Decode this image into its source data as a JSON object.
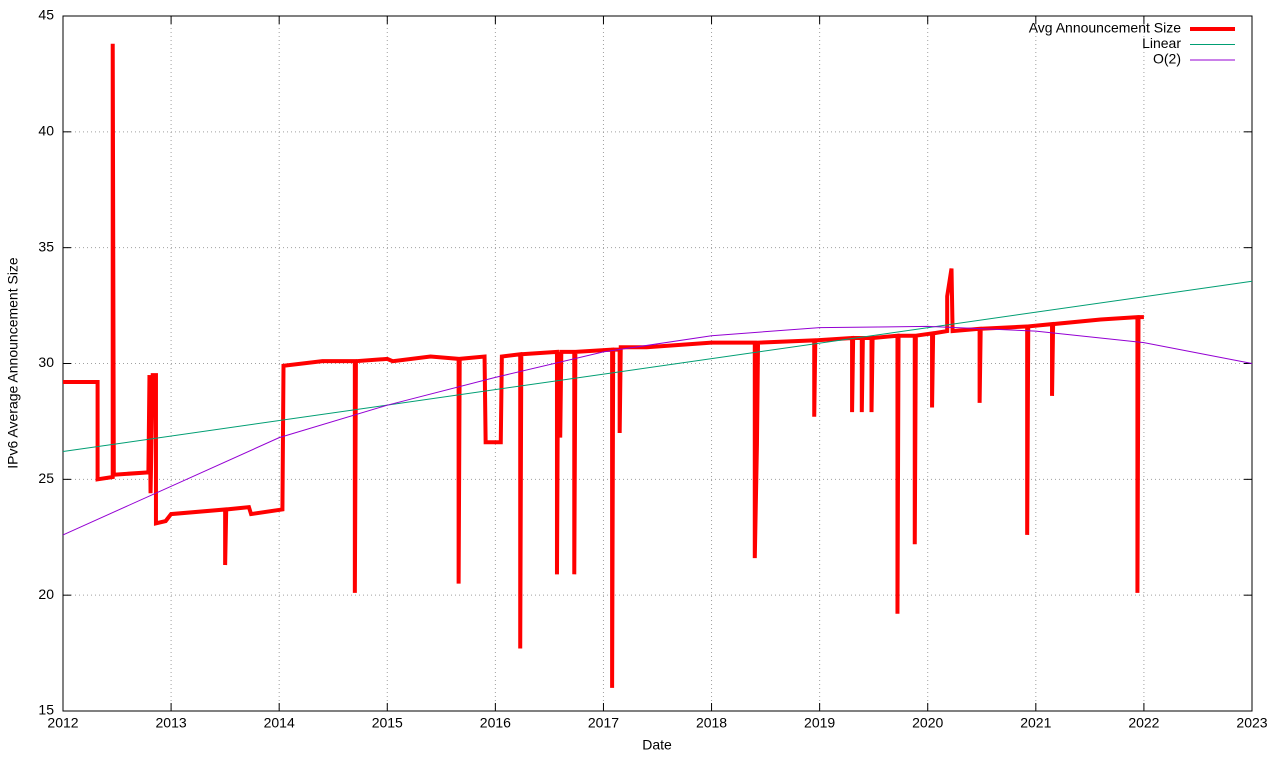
{
  "chart_data": {
    "type": "line",
    "xlabel": "Date",
    "ylabel": "IPv6 Average Announcement Size",
    "xlim": [
      2012,
      2023
    ],
    "ylim": [
      15,
      45
    ],
    "xticks": [
      2012,
      2013,
      2014,
      2015,
      2016,
      2017,
      2018,
      2019,
      2020,
      2021,
      2022,
      2023
    ],
    "yticks": [
      15,
      20,
      25,
      30,
      35,
      40,
      45
    ],
    "grid": true,
    "legend": "top-right",
    "series": [
      {
        "name": "Avg Announcement Size",
        "color": "#ff0000",
        "x": [
          2012.0,
          2012.32,
          2012.32,
          2012.46,
          2012.46,
          2012.47,
          2012.79,
          2012.8,
          2012.81,
          2012.83,
          2012.86,
          2012.86,
          2012.95,
          2013.0,
          2013.5,
          2013.5,
          2013.51,
          2013.72,
          2013.74,
          2014.03,
          2014.04,
          2014.4,
          2014.7,
          2014.7,
          2014.71,
          2015.0,
          2015.05,
          2015.4,
          2015.66,
          2015.66,
          2015.67,
          2015.9,
          2015.91,
          2016.05,
          2016.06,
          2016.23,
          2016.23,
          2016.24,
          2016.57,
          2016.57,
          2016.58,
          2016.6,
          2016.61,
          2016.73,
          2016.73,
          2016.74,
          2017.08,
          2017.08,
          2017.09,
          2017.15,
          2017.15,
          2017.16,
          2017.4,
          2018.0,
          2018.4,
          2018.4,
          2018.42,
          2018.43,
          2018.95,
          2018.95,
          2018.96,
          2019.3,
          2019.3,
          2019.31,
          2019.39,
          2019.39,
          2019.4,
          2019.48,
          2019.48,
          2019.49,
          2019.72,
          2019.72,
          2019.73,
          2019.88,
          2019.88,
          2019.89,
          2020.04,
          2020.04,
          2020.05,
          2020.18,
          2020.18,
          2020.22,
          2020.23,
          2020.48,
          2020.48,
          2020.49,
          2020.92,
          2020.92,
          2020.93,
          2021.15,
          2021.15,
          2021.16,
          2021.6,
          2021.94,
          2021.94,
          2021.95,
          2022.0
        ],
        "values": [
          29.2,
          29.2,
          25.0,
          25.1,
          43.8,
          25.2,
          25.3,
          29.5,
          24.4,
          29.5,
          29.5,
          23.1,
          23.2,
          23.5,
          23.7,
          21.3,
          23.7,
          23.8,
          23.5,
          23.7,
          29.9,
          30.1,
          30.1,
          20.1,
          30.1,
          30.2,
          30.1,
          30.3,
          30.2,
          20.5,
          30.2,
          30.3,
          26.6,
          26.6,
          30.3,
          30.4,
          17.7,
          30.4,
          30.5,
          20.9,
          30.5,
          26.8,
          30.5,
          30.5,
          20.9,
          30.5,
          30.6,
          16.0,
          30.6,
          30.6,
          27.0,
          30.7,
          30.7,
          30.9,
          30.9,
          21.6,
          26.5,
          30.9,
          31.0,
          27.7,
          31.0,
          31.1,
          27.9,
          31.1,
          31.1,
          27.9,
          31.1,
          31.1,
          27.9,
          31.1,
          31.2,
          19.2,
          31.2,
          31.2,
          22.2,
          31.2,
          31.3,
          28.1,
          31.3,
          31.4,
          32.9,
          34.1,
          31.4,
          31.5,
          28.3,
          31.5,
          31.6,
          22.6,
          31.6,
          31.7,
          28.6,
          31.7,
          31.9,
          32.0,
          20.1,
          32.0,
          32.0
        ]
      },
      {
        "name": "Linear",
        "color": "#009e73",
        "x": [
          2012,
          2023
        ],
        "values": [
          26.2,
          33.55
        ]
      },
      {
        "name": "O(2)",
        "color": "#9400d3",
        "x": [
          2012,
          2013,
          2014,
          2015,
          2016,
          2017,
          2018,
          2019,
          2020,
          2021,
          2022,
          2023
        ],
        "values": [
          22.6,
          24.7,
          26.8,
          28.2,
          29.4,
          30.5,
          31.2,
          31.55,
          31.6,
          31.4,
          30.9,
          30.0
        ]
      }
    ]
  }
}
